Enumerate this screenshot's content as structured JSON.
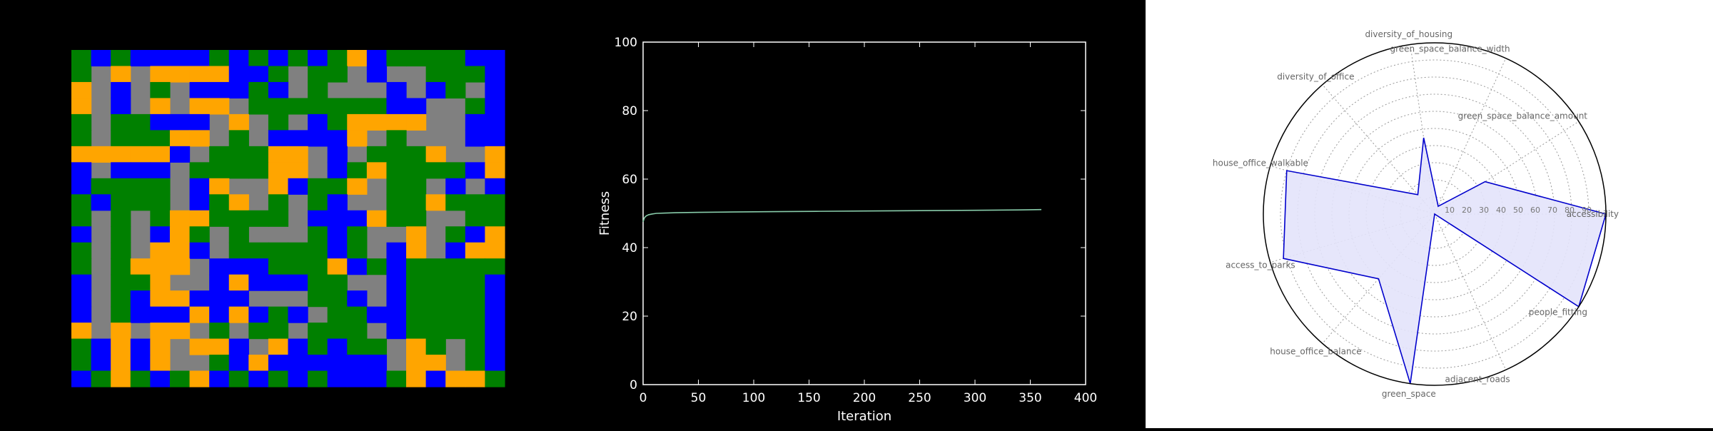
{
  "grid_map": {
    "colors": {
      "0": "#808080",
      "1": "#008000",
      "2": "#0000ff",
      "3": "#ffa500"
    },
    "cells": [
      "1212222121212132111122",
      "1030333322101102001112",
      "3020102221201000202102",
      "3020303301111111220012",
      "1011222030102133330022",
      "1011133010222230100022",
      "3333320111330201113003",
      "2022201111330213111123",
      "2111102300321130110202",
      "1211102130101200113111",
      "1010133111102223110011",
      "2010231010001210030123",
      "1010332011111210230233",
      "1013330222111321211111",
      "2011300232221100211112",
      "2012332220001120211112",
      "2012223232120112211112",
      "3030330101101110211112",
      "1232303320321211031012",
      "1232300123222222033012",
      "2131213212121222132331"
    ]
  },
  "chart_data": [
    {
      "type": "line",
      "xlabel": "Iteration",
      "ylabel": "Fitness",
      "xlim": [
        0,
        400
      ],
      "ylim": [
        0,
        100
      ],
      "xticks": [
        "0",
        "50",
        "100",
        "150",
        "200",
        "250",
        "300",
        "350",
        "400"
      ],
      "yticks": [
        "0",
        "20",
        "40",
        "60",
        "80",
        "100"
      ],
      "line_color": "#88ccaa",
      "series": [
        {
          "x": [
            0,
            1,
            2,
            3,
            5,
            8,
            12,
            20,
            30,
            50,
            80,
            120,
            160,
            200,
            250,
            300,
            340,
            360
          ],
          "y": [
            47.5,
            48.6,
            49.0,
            49.3,
            49.6,
            49.8,
            50.0,
            50.1,
            50.2,
            50.3,
            50.4,
            50.5,
            50.6,
            50.7,
            50.8,
            50.9,
            51.0,
            51.1
          ]
        }
      ]
    },
    {
      "type": "radar",
      "axes": [
        "accessibility",
        "green_space_balance_amount",
        "green_space_balance_width",
        "diversity_of_housing",
        "diversity_of_office",
        "house_office_walkable",
        "access_to_parks",
        "house_office_balance",
        "green_space",
        "adjacent_roads",
        "people_fitting"
      ],
      "values": [
        100,
        35,
        5,
        45,
        15,
        90,
        92,
        50,
        100,
        0,
        100
      ],
      "rticks": [
        "10",
        "20",
        "30",
        "40",
        "50",
        "60",
        "70",
        "80",
        "90"
      ],
      "rmax": 100,
      "line_color": "#0000cc",
      "fill_color": "#e3e3fb"
    }
  ]
}
